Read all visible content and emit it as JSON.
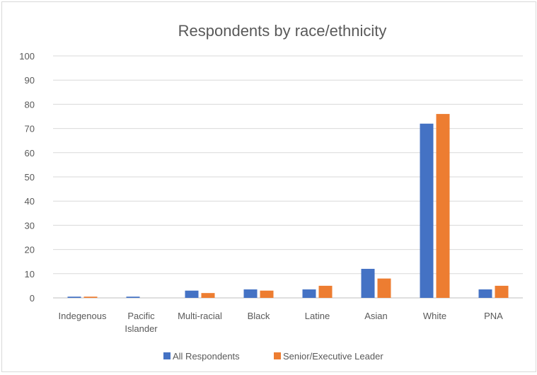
{
  "chart_data": {
    "type": "bar",
    "title": "Respondents by race/ethnicity",
    "xlabel": "",
    "ylabel": "",
    "ylim": [
      0,
      100
    ],
    "yticks": [
      0,
      10,
      20,
      30,
      40,
      50,
      60,
      70,
      80,
      90,
      100
    ],
    "grid": true,
    "legend_position": "bottom",
    "categories": [
      "Indegenous",
      "Pacific Islander",
      "Multi-racial",
      "Black",
      "Latine",
      "Asian",
      "White",
      "PNA"
    ],
    "category_label_lines": [
      [
        "Indegenous"
      ],
      [
        "Pacific",
        "Islander"
      ],
      [
        "Multi-racial"
      ],
      [
        "Black"
      ],
      [
        "Latine"
      ],
      [
        "Asian"
      ],
      [
        "White"
      ],
      [
        "PNA"
      ]
    ],
    "series": [
      {
        "name": "All Respondents",
        "color": "#4472c4",
        "values": [
          0.5,
          0.5,
          3,
          3.5,
          3.5,
          12,
          72,
          3.5
        ]
      },
      {
        "name": "Senior/Executive Leader",
        "color": "#ed7d31",
        "values": [
          0.5,
          0,
          2,
          3,
          5,
          8,
          76,
          5
        ]
      }
    ]
  }
}
